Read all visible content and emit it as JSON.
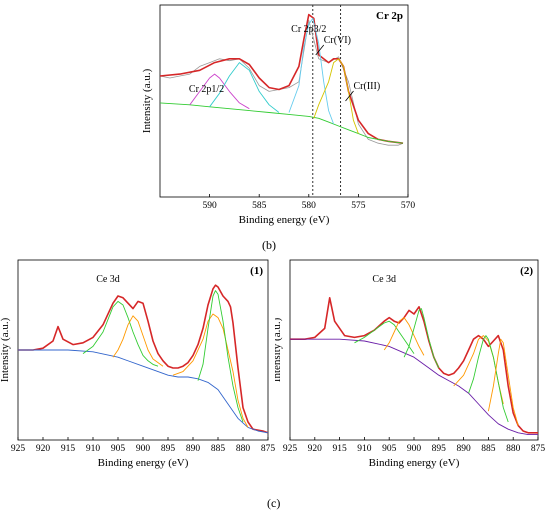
{
  "labels": {
    "b": "(b)",
    "c": "(c)"
  },
  "chart_data": [
    {
      "type": "line",
      "panel": "b",
      "corner_label": "Cr 2p",
      "xlabel": "Binding energy (eV)",
      "ylabel": "Intensity (a.u.)",
      "xlim": [
        595,
        570
      ],
      "x_ticks": [
        590,
        585,
        580,
        575,
        570
      ],
      "reference_lines": [
        579.6,
        576.8
      ],
      "annotations": [
        {
          "text": "Cr 2p3/2",
          "x": 580.0
        },
        {
          "text": "Cr(VI)",
          "x": 579.3
        },
        {
          "text": "Cr(III)",
          "x": 576.5
        },
        {
          "text": "Cr 2p1/2",
          "x": 589.5
        }
      ],
      "series": [
        {
          "color": "#999999",
          "x": [
            595,
            594,
            593,
            592,
            591,
            590,
            589,
            588,
            587,
            586,
            585,
            584,
            583,
            582,
            581,
            580,
            579,
            578,
            577,
            576,
            575,
            574,
            573,
            572,
            571,
            570.5
          ],
          "y": [
            0.63,
            0.62,
            0.63,
            0.64,
            0.68,
            0.7,
            0.72,
            0.71,
            0.72,
            0.67,
            0.58,
            0.55,
            0.56,
            0.57,
            0.6,
            0.92,
            0.72,
            0.7,
            0.73,
            0.6,
            0.38,
            0.3,
            0.28,
            0.27,
            0.27,
            0.28
          ]
        },
        {
          "color": "#d62728",
          "x": [
            595,
            593,
            591,
            589.5,
            588,
            587,
            586,
            585,
            584,
            583,
            582,
            581,
            580.5,
            580,
            579.5,
            579,
            578,
            577.5,
            577,
            576.5,
            576,
            575,
            574,
            573,
            572,
            570.5
          ],
          "y": [
            0.63,
            0.64,
            0.66,
            0.7,
            0.72,
            0.72,
            0.69,
            0.62,
            0.57,
            0.56,
            0.58,
            0.68,
            0.82,
            0.95,
            0.93,
            0.74,
            0.7,
            0.72,
            0.72,
            0.68,
            0.55,
            0.4,
            0.33,
            0.3,
            0.29,
            0.28
          ]
        },
        {
          "color": "#33cc33",
          "x": [
            595,
            592,
            590,
            588,
            586,
            584,
            582,
            580,
            579,
            578,
            577,
            576,
            575,
            574,
            573,
            572,
            570.5
          ],
          "y": [
            0.49,
            0.48,
            0.47,
            0.46,
            0.45,
            0.44,
            0.43,
            0.42,
            0.41,
            0.39,
            0.37,
            0.35,
            0.33,
            0.31,
            0.3,
            0.29,
            0.28
          ]
        },
        {
          "color": "#cc44cc",
          "x": [
            592,
            591,
            590,
            589.5,
            589,
            588,
            587,
            586
          ],
          "y": [
            0.48,
            0.55,
            0.62,
            0.64,
            0.62,
            0.55,
            0.49,
            0.46
          ]
        },
        {
          "color": "#33cccc",
          "x": [
            590,
            589,
            588,
            587,
            586,
            585,
            584,
            583
          ],
          "y": [
            0.47,
            0.54,
            0.63,
            0.7,
            0.66,
            0.55,
            0.48,
            0.44
          ]
        },
        {
          "color": "#66ccee",
          "x": [
            582,
            581,
            580.5,
            580,
            579.6,
            579,
            578.5,
            578,
            577.5
          ],
          "y": [
            0.44,
            0.58,
            0.78,
            0.9,
            0.93,
            0.8,
            0.6,
            0.45,
            0.38
          ]
        },
        {
          "color": "#d4c400",
          "x": [
            579.5,
            579,
            578,
            577.5,
            577,
            576.5,
            576,
            575.5,
            575
          ],
          "y": [
            0.41,
            0.48,
            0.6,
            0.7,
            0.72,
            0.68,
            0.55,
            0.4,
            0.33
          ]
        }
      ]
    },
    {
      "type": "line",
      "panel": "c1",
      "corner_label": "(1)",
      "peak_label": "Ce 3d",
      "xlabel": "Binding energy (eV)",
      "ylabel": "Intensity (a.u.)",
      "xlim": [
        925,
        875
      ],
      "x_ticks": [
        925,
        920,
        915,
        910,
        905,
        900,
        895,
        890,
        885,
        880,
        875
      ],
      "series": [
        {
          "color": "#d62728",
          "x": [
            925,
            922,
            920,
            918,
            917,
            916,
            914,
            912,
            910,
            908,
            906,
            905,
            904,
            903,
            902,
            901,
            900,
            899,
            898,
            897,
            896,
            895,
            894,
            893,
            892,
            891,
            890,
            889,
            888,
            887,
            886,
            885.5,
            885,
            884,
            883,
            882.5,
            882,
            881,
            880,
            879,
            878,
            876,
            875
          ],
          "y": [
            0.5,
            0.5,
            0.51,
            0.55,
            0.63,
            0.56,
            0.53,
            0.54,
            0.57,
            0.64,
            0.76,
            0.8,
            0.79,
            0.76,
            0.73,
            0.77,
            0.76,
            0.66,
            0.55,
            0.48,
            0.44,
            0.41,
            0.4,
            0.4,
            0.41,
            0.43,
            0.47,
            0.53,
            0.62,
            0.75,
            0.84,
            0.86,
            0.85,
            0.8,
            0.77,
            0.74,
            0.65,
            0.4,
            0.18,
            0.1,
            0.06,
            0.05,
            0.04
          ]
        },
        {
          "color": "#3366cc",
          "x": [
            925,
            920,
            915,
            910,
            905,
            900,
            897,
            895,
            893,
            891,
            889,
            887,
            885,
            883,
            881,
            879,
            877,
            875
          ],
          "y": [
            0.5,
            0.5,
            0.5,
            0.49,
            0.46,
            0.41,
            0.38,
            0.36,
            0.35,
            0.35,
            0.34,
            0.32,
            0.28,
            0.2,
            0.12,
            0.07,
            0.05,
            0.04
          ]
        },
        {
          "color": "#33cc33",
          "x": [
            912,
            910,
            908,
            906,
            905,
            904,
            903,
            902,
            901,
            900,
            899,
            898,
            897
          ],
          "y": [
            0.48,
            0.52,
            0.6,
            0.74,
            0.77,
            0.75,
            0.68,
            0.6,
            0.53,
            0.47,
            0.44,
            0.42,
            0.41
          ]
        },
        {
          "color": "#ff9900",
          "x": [
            906,
            905,
            904,
            903,
            902,
            901,
            900,
            899,
            898,
            897,
            896
          ],
          "y": [
            0.46,
            0.5,
            0.56,
            0.64,
            0.69,
            0.66,
            0.58,
            0.5,
            0.45,
            0.43,
            0.41
          ]
        },
        {
          "color": "#ff9900",
          "x": [
            894,
            892,
            890,
            888,
            887,
            886,
            885,
            884,
            883,
            882,
            881,
            880,
            879
          ],
          "y": [
            0.36,
            0.38,
            0.44,
            0.56,
            0.66,
            0.7,
            0.68,
            0.62,
            0.5,
            0.38,
            0.22,
            0.12,
            0.07
          ]
        },
        {
          "color": "#33cc33",
          "x": [
            889,
            888,
            887,
            886,
            885.5,
            885,
            884,
            883,
            882,
            881,
            880
          ],
          "y": [
            0.33,
            0.42,
            0.62,
            0.8,
            0.83,
            0.81,
            0.66,
            0.46,
            0.3,
            0.18,
            0.1
          ]
        }
      ]
    },
    {
      "type": "line",
      "panel": "c2",
      "corner_label": "(2)",
      "peak_label": "Ce 3d",
      "xlabel": "Binding energy (eV)",
      "ylabel": "Intensity (a.u.)",
      "xlim": [
        925,
        875
      ],
      "x_ticks": [
        925,
        920,
        915,
        910,
        905,
        900,
        895,
        890,
        885,
        880,
        875
      ],
      "series": [
        {
          "color": "#d62728",
          "x": [
            925,
            922,
            920,
            918,
            917,
            916,
            914,
            912,
            910,
            908,
            906,
            905,
            904,
            903,
            902,
            901,
            900,
            899,
            898,
            897,
            896,
            895,
            894,
            893,
            892,
            891,
            890,
            889,
            888,
            887,
            886,
            885,
            884,
            883,
            882,
            881,
            880,
            879,
            878,
            877,
            876,
            875
          ],
          "y": [
            0.56,
            0.56,
            0.57,
            0.62,
            0.79,
            0.66,
            0.58,
            0.57,
            0.58,
            0.61,
            0.66,
            0.68,
            0.66,
            0.65,
            0.68,
            0.72,
            0.7,
            0.74,
            0.66,
            0.55,
            0.46,
            0.4,
            0.37,
            0.36,
            0.37,
            0.4,
            0.44,
            0.5,
            0.56,
            0.58,
            0.56,
            0.52,
            0.55,
            0.58,
            0.5,
            0.3,
            0.15,
            0.08,
            0.05,
            0.04,
            0.04,
            0.04
          ]
        },
        {
          "color": "#6a1fa8",
          "x": [
            925,
            920,
            915,
            910,
            905,
            900,
            897,
            895,
            893,
            891,
            889,
            887,
            885,
            883,
            881,
            879,
            877,
            875
          ],
          "y": [
            0.56,
            0.56,
            0.56,
            0.55,
            0.52,
            0.46,
            0.4,
            0.36,
            0.33,
            0.3,
            0.26,
            0.2,
            0.14,
            0.09,
            0.06,
            0.04,
            0.03,
            0.03
          ]
        },
        {
          "color": "#33cc33",
          "x": [
            912,
            910,
            908,
            906,
            905,
            904,
            903,
            902,
            901,
            900
          ],
          "y": [
            0.54,
            0.57,
            0.61,
            0.65,
            0.66,
            0.64,
            0.6,
            0.56,
            0.52,
            0.48
          ]
        },
        {
          "color": "#ff9900",
          "x": [
            906,
            905,
            904,
            903,
            902,
            901,
            900,
            899,
            898
          ],
          "y": [
            0.5,
            0.54,
            0.6,
            0.66,
            0.68,
            0.64,
            0.58,
            0.52,
            0.47
          ]
        },
        {
          "color": "#33cc33",
          "x": [
            902,
            901,
            900,
            899,
            898.5,
            898,
            897,
            896,
            895
          ],
          "y": [
            0.46,
            0.52,
            0.62,
            0.72,
            0.73,
            0.68,
            0.56,
            0.46,
            0.4
          ]
        },
        {
          "color": "#ff9900",
          "x": [
            892,
            890,
            888,
            887,
            886,
            885,
            884,
            883,
            882
          ],
          "y": [
            0.3,
            0.36,
            0.48,
            0.56,
            0.58,
            0.55,
            0.46,
            0.32,
            0.2
          ]
        },
        {
          "color": "#33cc33",
          "x": [
            889,
            888,
            887,
            886,
            885.5,
            885,
            884,
            883,
            882,
            881
          ],
          "y": [
            0.26,
            0.34,
            0.46,
            0.56,
            0.58,
            0.56,
            0.46,
            0.32,
            0.18,
            0.1
          ]
        },
        {
          "color": "#ff9900",
          "x": [
            885,
            884,
            883,
            882.5,
            882,
            881,
            880,
            879
          ],
          "y": [
            0.16,
            0.3,
            0.48,
            0.56,
            0.54,
            0.36,
            0.18,
            0.08
          ]
        }
      ]
    }
  ]
}
